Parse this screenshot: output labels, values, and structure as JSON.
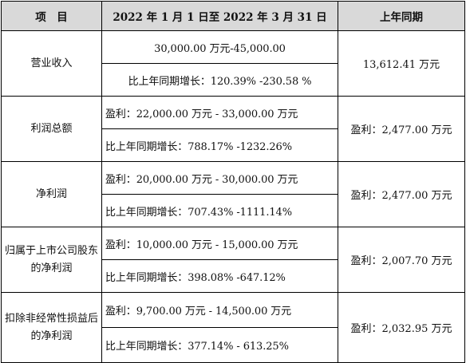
{
  "header": {
    "item": "项　目",
    "period": "2022 年 1 月 1 日至 2022 年 3 月 31 日",
    "prior": "上年同期"
  },
  "rows": [
    {
      "item": "营业收入",
      "estimate": "30,000.00 万元-45,000.00",
      "growth": "比上年同期增长：120.39% -230.58 %",
      "prior": "13,612.41 万元"
    },
    {
      "item": "利润总额",
      "estimate": "盈利：22,000.00 万元 - 33,000.00 万元",
      "growth": "比上年同期增长：788.17% -1232.26%",
      "prior": "盈利：2,477.00 万元"
    },
    {
      "item": "净利润",
      "estimate": "盈利：20,000.00 万元 - 30,000.00 万元",
      "growth": "比上年同期增长：707.43% -1111.14%",
      "prior": "盈利：2,477.00 万元"
    },
    {
      "item": "归属于上市公司股东的净利润",
      "estimate": "盈利：10,000.00 万元 - 15,000.00 万元",
      "growth": "比上年同期增长：398.08% -647.12%",
      "prior": "盈利：2,007.70 万元"
    },
    {
      "item": "扣除非经常性损益后的净利润",
      "estimate": "盈利：9,700.00 万元 - 14,500.00 万元",
      "growth": "比上年同期增长：377.14% - 613.25%",
      "prior": "盈利：2,032.95 万元"
    }
  ]
}
